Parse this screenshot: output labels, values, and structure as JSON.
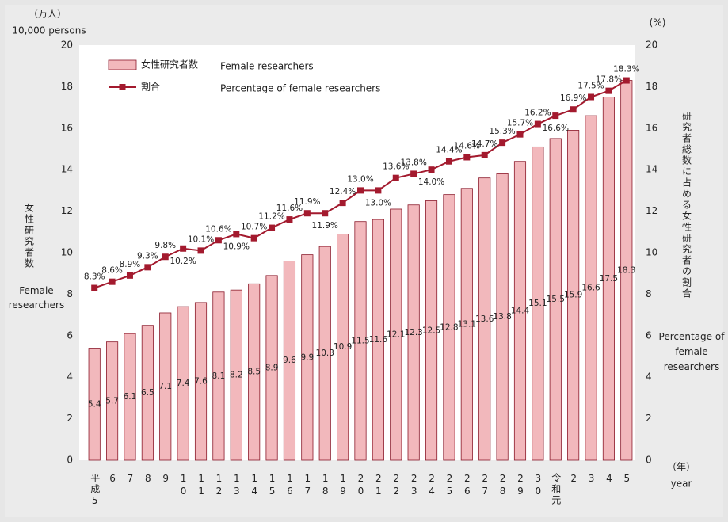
{
  "chart_data": {
    "type": "bar_line",
    "y_title_unit": "（万人）",
    "y_title_unit_en": "10,000 persons",
    "y_title": "女性研究者数",
    "y_title_en": "Female researchers",
    "y2_title_unit": "(%)",
    "y2_title": "研究者総数に占める女性研究者の割合",
    "y2_title_en": "Percentage of female researchers",
    "x_title": "（年）",
    "x_title_en": "year",
    "categories": [
      "平成5",
      "6",
      "7",
      "8",
      "9",
      "10",
      "11",
      "12",
      "13",
      "14",
      "15",
      "16",
      "17",
      "18",
      "19",
      "20",
      "21",
      "22",
      "23",
      "24",
      "25",
      "26",
      "27",
      "28",
      "29",
      "30",
      "令和元",
      "2",
      "3",
      "4",
      "5"
    ],
    "series": [
      {
        "name": "女性研究者数",
        "name_en": "Female researchers",
        "type": "bar",
        "color": "#f2b8bc",
        "values": [
          5.4,
          5.7,
          6.1,
          6.5,
          7.1,
          7.4,
          7.6,
          8.1,
          8.2,
          8.5,
          8.9,
          9.6,
          9.9,
          10.3,
          10.9,
          11.5,
          11.6,
          12.1,
          12.3,
          12.5,
          12.8,
          13.1,
          13.6,
          13.8,
          14.4,
          15.1,
          15.5,
          15.9,
          16.6,
          17.5,
          18.3
        ]
      },
      {
        "name": "割合",
        "name_en": "Percentage of female researchers",
        "type": "line",
        "axis": "y2",
        "color": "#a31a2e",
        "values": [
          8.3,
          8.6,
          8.9,
          9.3,
          9.8,
          10.2,
          10.1,
          10.6,
          10.9,
          10.7,
          11.2,
          11.6,
          11.9,
          11.9,
          12.4,
          13,
          13,
          13.6,
          13.8,
          14,
          14.4,
          14.6,
          14.7,
          15.3,
          15.7,
          16.2,
          16.6,
          16.9,
          17.5,
          17.8,
          18.3
        ],
        "value_labels": [
          "8.3%",
          "8.6%",
          "8.9%",
          "9.3%",
          "9.8%",
          "10.2%",
          "10.1%",
          "10.6%",
          "10.9%",
          "10.7%",
          "11.2%",
          "11.6%",
          "11.9%",
          "11.9%",
          "12.4%",
          "13.0%",
          "13.0%",
          "13.6%",
          "13.8%",
          "14.0%",
          "14.4%",
          "14.6%",
          "14.7%",
          "15.3%",
          "15.7%",
          "16.2%",
          "16.6%",
          "16.9%",
          "17.5%",
          "17.8%",
          "18.3%"
        ]
      }
    ],
    "ylim": [
      0,
      20
    ],
    "yticks": [
      0,
      2,
      4,
      6,
      8,
      10,
      12,
      14,
      16,
      18,
      20
    ],
    "y2lim": [
      0,
      20
    ],
    "y2ticks": [
      0,
      2,
      4,
      6,
      8,
      10,
      12,
      14,
      16,
      18,
      20
    ]
  }
}
